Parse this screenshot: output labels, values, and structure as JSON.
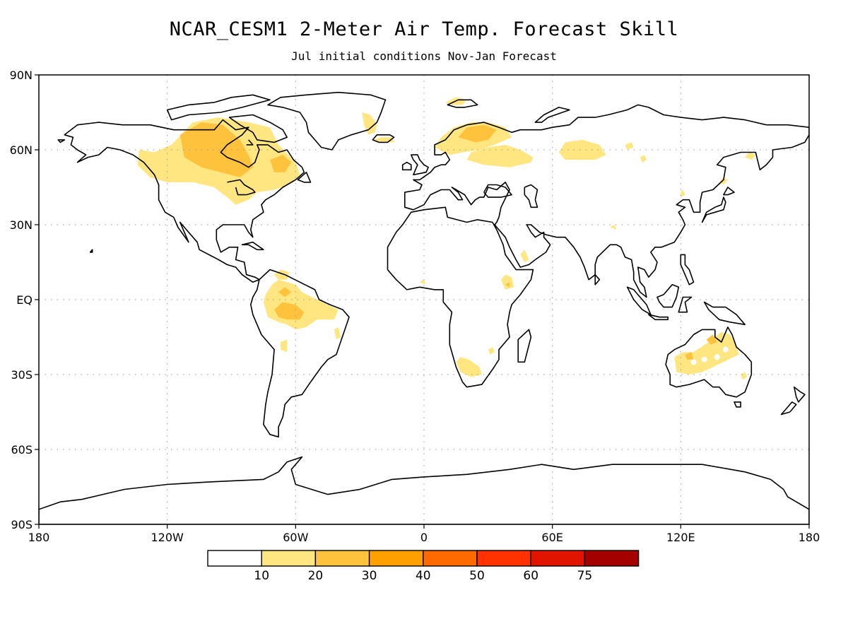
{
  "title": "NCAR_CESM1 2-Meter Air Temp. Forecast Skill",
  "subtitle": "Jul initial conditions   Nov-Jan Forecast",
  "map": {
    "projection": "cylindrical-equidistant",
    "lon_range": [
      -180,
      180
    ],
    "lat_range": [
      -90,
      90
    ],
    "grid": "dotted",
    "lat_ticks": [
      {
        "value": 90,
        "label": "90N"
      },
      {
        "value": 60,
        "label": "60N"
      },
      {
        "value": 30,
        "label": "30N"
      },
      {
        "value": 0,
        "label": "EQ"
      },
      {
        "value": -30,
        "label": "30S"
      },
      {
        "value": -60,
        "label": "60S"
      },
      {
        "value": -90,
        "label": "90S"
      }
    ],
    "lon_ticks": [
      {
        "value": -180,
        "label": "180"
      },
      {
        "value": -120,
        "label": "120W"
      },
      {
        "value": -60,
        "label": "60W"
      },
      {
        "value": 0,
        "label": "0"
      },
      {
        "value": 60,
        "label": "60E"
      },
      {
        "value": 120,
        "label": "120E"
      },
      {
        "value": 180,
        "label": "180"
      }
    ]
  },
  "legend": {
    "colors": [
      "#ffffff",
      "#ffe680",
      "#ffc23c",
      "#ffa000",
      "#ff6a00",
      "#ff3200",
      "#e11400",
      "#a50000"
    ],
    "labels": [
      "10",
      "20",
      "30",
      "40",
      "50",
      "60",
      "75"
    ]
  },
  "chart_data": {
    "type": "heatmap",
    "title": "NCAR_CESM1 2-Meter Air Temp. Forecast Skill",
    "subtitle": "Jul initial conditions   Nov-Jan Forecast",
    "xlim": [
      -180,
      180
    ],
    "ylim": [
      -90,
      90
    ],
    "color_levels": [
      10,
      20,
      30,
      40,
      50,
      60,
      75
    ],
    "skill_regions": [
      {
        "name": "Northern Canada / Hudson Bay",
        "level": "10-20",
        "core_level": "20-30",
        "lon": [
          -130,
          -58
        ],
        "lat": [
          42,
          72
        ]
      },
      {
        "name": "Western Canada",
        "level": "10-20",
        "lon": [
          -135,
          -108
        ],
        "lat": [
          48,
          60
        ]
      },
      {
        "name": "East Greenland coast",
        "level": "10-20",
        "lon": [
          -28,
          -22
        ],
        "lat": [
          67,
          75
        ]
      },
      {
        "name": "Northern Europe / Scandinavia",
        "level": "10-20",
        "core_level": "20-30",
        "lon": [
          5,
          42
        ],
        "lat": [
          57,
          71
        ]
      },
      {
        "name": "Western Russia",
        "level": "10-20",
        "lon": [
          20,
          50
        ],
        "lat": [
          53,
          62
        ]
      },
      {
        "name": "Central Siberia",
        "level": "10-20",
        "lon": [
          63,
          85
        ],
        "lat": [
          56,
          65
        ]
      },
      {
        "name": "Amazon basin",
        "level": "10-20",
        "core_level": "20-30",
        "lon": [
          -75,
          -55
        ],
        "lat": [
          -12,
          5
        ]
      },
      {
        "name": "East Africa",
        "level": "10-20",
        "lon": [
          36,
          42
        ],
        "lat": [
          4,
          10
        ]
      },
      {
        "name": "Southern Africa",
        "level": "10-20",
        "lon": [
          15,
          28
        ],
        "lat": [
          -30,
          -23
        ]
      },
      {
        "name": "Australia",
        "level": "10-20",
        "core_level": "20-30",
        "lon": [
          117,
          148
        ],
        "lat": [
          -30,
          -13
        ]
      }
    ]
  }
}
